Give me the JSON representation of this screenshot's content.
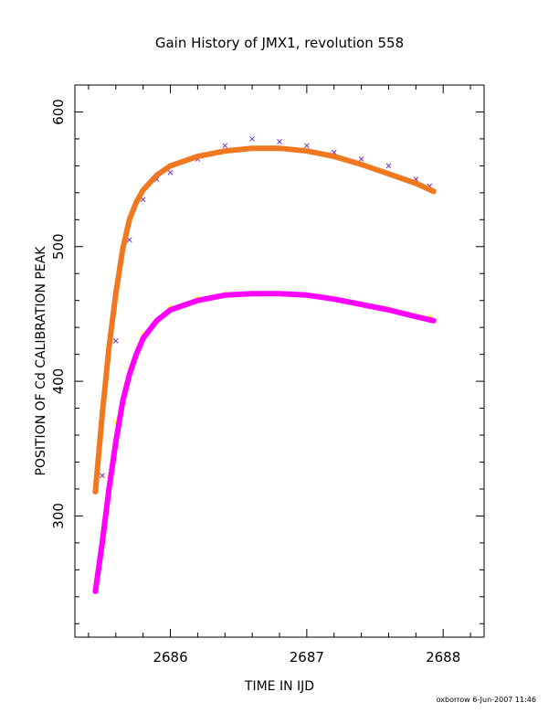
{
  "chart_data": {
    "type": "scatter",
    "title": "Gain History of JMX1, revolution 558",
    "xlabel": "TIME IN IJD",
    "ylabel": "POSITION OF Cd CALIBRATION PEAK",
    "xlim": [
      2685.3,
      2688.3
    ],
    "ylim": [
      210,
      620
    ],
    "xticks": [
      2686,
      2687,
      2688
    ],
    "yticks": [
      300,
      400,
      500,
      600
    ],
    "grid": false,
    "legend": "none",
    "series": [
      {
        "marker": "x",
        "color": "#7b2fbf",
        "x": [
          2685.5,
          2685.6,
          2685.7,
          2685.8,
          2685.9,
          2686.0,
          2686.2,
          2686.4,
          2686.6,
          2686.8,
          2687.0,
          2687.2,
          2687.4,
          2687.6,
          2687.8,
          2687.9
        ],
        "y": [
          330,
          430,
          505,
          535,
          550,
          555,
          565,
          575,
          580,
          578,
          575,
          570,
          565,
          560,
          550,
          545
        ]
      },
      {
        "marker": "line",
        "color": "#f07820",
        "x": [
          2685.45,
          2685.5,
          2685.55,
          2685.6,
          2685.65,
          2685.7,
          2685.75,
          2685.8,
          2685.9,
          2686.0,
          2686.2,
          2686.4,
          2686.6,
          2686.8,
          2687.0,
          2687.2,
          2687.4,
          2687.6,
          2687.8,
          2687.93
        ],
        "y": [
          318,
          375,
          425,
          465,
          498,
          520,
          533,
          542,
          553,
          560,
          567,
          571,
          573,
          573,
          571,
          567,
          561,
          554,
          547,
          541
        ]
      },
      {
        "marker": "+",
        "color": "#ffff00",
        "x": [
          2685.45,
          2685.5,
          2685.55,
          2685.6,
          2685.7,
          2685.8,
          2685.9,
          2686.0,
          2686.2,
          2686.4,
          2686.6,
          2686.8,
          2687.0,
          2687.2,
          2687.4,
          2687.6,
          2687.8,
          2687.9
        ],
        "y": [
          250,
          290,
          330,
          370,
          410,
          435,
          445,
          455,
          462,
          465,
          466,
          466,
          465,
          462,
          458,
          455,
          450,
          448
        ]
      },
      {
        "marker": "line",
        "color": "#ff00ff",
        "x": [
          2685.45,
          2685.5,
          2685.55,
          2685.6,
          2685.65,
          2685.7,
          2685.75,
          2685.8,
          2685.9,
          2686.0,
          2686.2,
          2686.4,
          2686.6,
          2686.8,
          2687.0,
          2687.2,
          2687.4,
          2687.6,
          2687.8,
          2687.93
        ],
        "y": [
          244,
          280,
          320,
          355,
          385,
          405,
          420,
          432,
          445,
          453,
          460,
          464,
          465,
          465,
          464,
          461,
          457,
          453,
          448,
          445
        ]
      }
    ]
  },
  "footer": "oxborrow  6-Jun-2007 11:46"
}
